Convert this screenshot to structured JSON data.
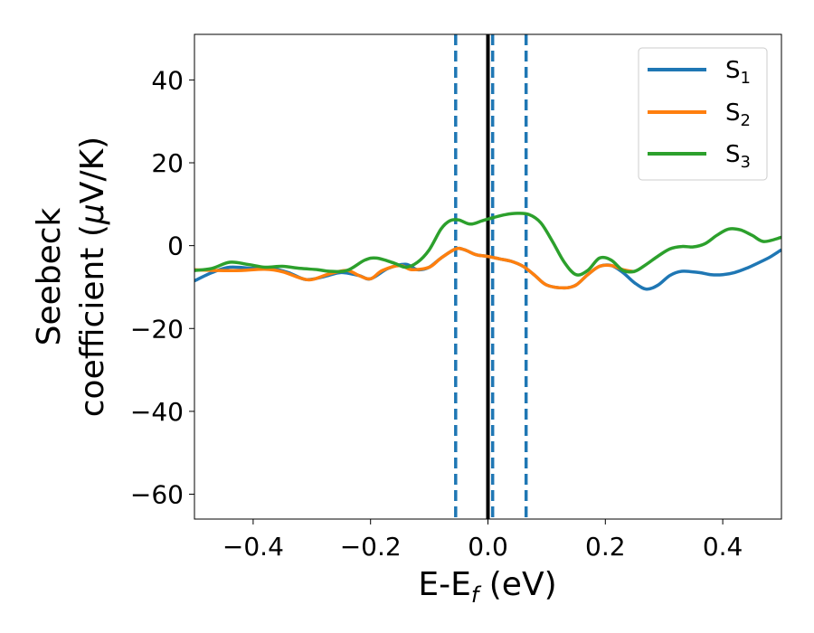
{
  "chart_data": {
    "type": "line",
    "xlabel": {
      "main": "E-E",
      "sub": "f",
      "unit": " (eV)"
    },
    "ylabel": {
      "line1": "Seebeck",
      "line2_prefix": "coefficient  (",
      "mu": "μ",
      "line2_suffix": "V/K)"
    },
    "xlim": [
      -0.5,
      0.5
    ],
    "ylim": [
      -66,
      51
    ],
    "x_ticks": [
      -0.4,
      -0.2,
      0.0,
      0.2,
      0.4
    ],
    "x_tick_labels": [
      "−0.4",
      "−0.2",
      "0.0",
      "0.2",
      "0.4"
    ],
    "y_ticks": [
      40,
      20,
      0,
      -20,
      -40,
      -60
    ],
    "y_tick_labels": [
      "40",
      "20",
      "0",
      "−20",
      "−40",
      "−60"
    ],
    "legend_position": "top-right",
    "series": [
      {
        "name": "S1",
        "legend_main": "S",
        "legend_sub": "1",
        "color": "#1f77b4",
        "points": [
          [
            -0.5,
            -8.5
          ],
          [
            -0.47,
            -6.5
          ],
          [
            -0.44,
            -5.2
          ],
          [
            -0.4,
            -5.5
          ],
          [
            -0.37,
            -5.5
          ],
          [
            -0.34,
            -6.5
          ],
          [
            -0.31,
            -8.2
          ],
          [
            -0.28,
            -7.5
          ],
          [
            -0.25,
            -6.5
          ],
          [
            -0.22,
            -7.2
          ],
          [
            -0.2,
            -8.0
          ],
          [
            -0.17,
            -5.5
          ],
          [
            -0.14,
            -4.5
          ],
          [
            -0.12,
            -5.8
          ],
          [
            -0.1,
            -5.2
          ],
          [
            -0.08,
            -3.0
          ],
          [
            -0.055,
            -0.8
          ],
          [
            -0.04,
            -1.0
          ],
          [
            -0.02,
            -2.2
          ],
          [
            0.0,
            -2.6
          ],
          [
            0.02,
            -3.2
          ],
          [
            0.04,
            -3.8
          ],
          [
            0.06,
            -5.0
          ],
          [
            0.08,
            -7.2
          ],
          [
            0.1,
            -9.5
          ],
          [
            0.13,
            -10.2
          ],
          [
            0.15,
            -9.5
          ],
          [
            0.17,
            -7.0
          ],
          [
            0.19,
            -5.0
          ],
          [
            0.21,
            -4.8
          ],
          [
            0.23,
            -6.5
          ],
          [
            0.25,
            -9.0
          ],
          [
            0.27,
            -10.5
          ],
          [
            0.29,
            -9.5
          ],
          [
            0.31,
            -7.2
          ],
          [
            0.33,
            -6.2
          ],
          [
            0.36,
            -6.5
          ],
          [
            0.38,
            -7.0
          ],
          [
            0.4,
            -7.0
          ],
          [
            0.42,
            -6.5
          ],
          [
            0.44,
            -5.5
          ],
          [
            0.46,
            -4.2
          ],
          [
            0.48,
            -2.8
          ],
          [
            0.5,
            -1.0
          ]
        ]
      },
      {
        "name": "S2",
        "legend_main": "S",
        "legend_sub": "2",
        "color": "#ff7f0e",
        "points": [
          [
            -0.5,
            -5.8
          ],
          [
            -0.46,
            -6.0
          ],
          [
            -0.42,
            -6.0
          ],
          [
            -0.38,
            -5.7
          ],
          [
            -0.35,
            -6.3
          ],
          [
            -0.32,
            -7.8
          ],
          [
            -0.3,
            -8.2
          ],
          [
            -0.27,
            -6.8
          ],
          [
            -0.24,
            -6.0
          ],
          [
            -0.22,
            -7.2
          ],
          [
            -0.2,
            -8.0
          ],
          [
            -0.18,
            -6.0
          ],
          [
            -0.15,
            -4.8
          ],
          [
            -0.13,
            -5.8
          ],
          [
            -0.1,
            -5.2
          ],
          [
            -0.08,
            -3.0
          ],
          [
            -0.055,
            -0.8
          ],
          [
            -0.04,
            -1.0
          ],
          [
            -0.02,
            -2.2
          ],
          [
            0.0,
            -2.6
          ],
          [
            0.02,
            -3.2
          ],
          [
            0.04,
            -3.8
          ],
          [
            0.06,
            -5.0
          ],
          [
            0.08,
            -7.2
          ],
          [
            0.1,
            -9.5
          ],
          [
            0.13,
            -10.2
          ],
          [
            0.15,
            -9.5
          ],
          [
            0.17,
            -7.0
          ],
          [
            0.19,
            -5.0
          ],
          [
            0.21,
            -4.8
          ],
          [
            0.23,
            -5.8
          ],
          [
            0.25,
            -6.3
          ]
        ]
      },
      {
        "name": "S3",
        "legend_main": "S",
        "legend_sub": "3",
        "color": "#2ca02c",
        "points": [
          [
            -0.5,
            -6.0
          ],
          [
            -0.47,
            -5.5
          ],
          [
            -0.44,
            -4.0
          ],
          [
            -0.41,
            -4.5
          ],
          [
            -0.38,
            -5.2
          ],
          [
            -0.35,
            -5.0
          ],
          [
            -0.32,
            -5.5
          ],
          [
            -0.29,
            -5.8
          ],
          [
            -0.27,
            -6.2
          ],
          [
            -0.24,
            -6.0
          ],
          [
            -0.21,
            -3.5
          ],
          [
            -0.19,
            -3.0
          ],
          [
            -0.16,
            -4.2
          ],
          [
            -0.14,
            -5.2
          ],
          [
            -0.12,
            -4.0
          ],
          [
            -0.1,
            -1.0
          ],
          [
            -0.08,
            4.0
          ],
          [
            -0.065,
            6.0
          ],
          [
            -0.05,
            6.2
          ],
          [
            -0.03,
            5.2
          ],
          [
            -0.01,
            6.0
          ],
          [
            0.01,
            6.8
          ],
          [
            0.03,
            7.5
          ],
          [
            0.05,
            7.8
          ],
          [
            0.07,
            7.5
          ],
          [
            0.09,
            5.5
          ],
          [
            0.11,
            1.0
          ],
          [
            0.13,
            -4.0
          ],
          [
            0.15,
            -7.0
          ],
          [
            0.17,
            -6.0
          ],
          [
            0.19,
            -3.0
          ],
          [
            0.21,
            -3.5
          ],
          [
            0.23,
            -6.0
          ],
          [
            0.25,
            -6.2
          ],
          [
            0.27,
            -4.5
          ],
          [
            0.29,
            -2.5
          ],
          [
            0.31,
            -0.8
          ],
          [
            0.33,
            -0.2
          ],
          [
            0.35,
            -0.3
          ],
          [
            0.37,
            0.5
          ],
          [
            0.39,
            2.5
          ],
          [
            0.41,
            4.0
          ],
          [
            0.43,
            3.8
          ],
          [
            0.45,
            2.5
          ],
          [
            0.47,
            1.0
          ],
          [
            0.5,
            2.0
          ]
        ]
      }
    ],
    "vlines": [
      {
        "x": -0.055,
        "style": "dashed",
        "color": "#1f77b4"
      },
      {
        "x": 0.008,
        "style": "dashed",
        "color": "#1f77b4"
      },
      {
        "x": 0.065,
        "style": "dashed",
        "color": "#1f77b4"
      },
      {
        "x": 0.0,
        "style": "solid",
        "color": "#000000"
      }
    ]
  }
}
